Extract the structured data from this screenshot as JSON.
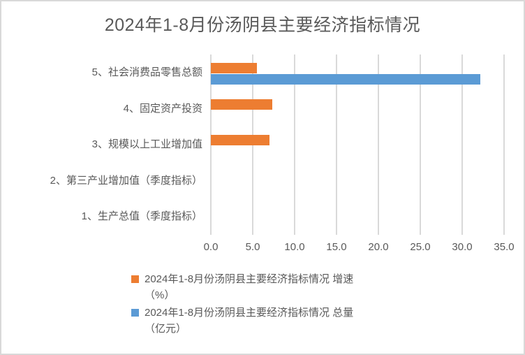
{
  "frame": {
    "background": "#ffffff",
    "border_color": "#d9d9d9",
    "text_color": "#595959",
    "gridline_color": "#d9d9d9"
  },
  "chart_data": {
    "type": "bar",
    "orientation": "horizontal",
    "title": "2024年1-8月份汤阴县主要经济指标情况",
    "categories": [
      "5、社会消费品零售总额",
      "4、固定资产投资",
      "3、规模以上工业增加值",
      "2、第三产业增加值（季度指标）",
      "1、生产总值（季度指标）"
    ],
    "series": [
      {
        "name": "2024年1-8月份汤阴县主要经济指标情况 增速（%）",
        "color": "#ED7D31",
        "values": [
          5.5,
          7.3,
          7.0,
          null,
          null
        ]
      },
      {
        "name": "2024年1-8月份汤阴县主要经济指标情况 总量（亿元）",
        "color": "#5B9BD5",
        "values": [
          32.2,
          null,
          null,
          null,
          null
        ]
      }
    ],
    "x_axis": {
      "min": 0,
      "max": 35,
      "step": 5,
      "tick_labels": [
        "0.0",
        "5.0",
        "10.0",
        "15.0",
        "20.0",
        "25.0",
        "30.0",
        "35.0"
      ]
    },
    "grid": true,
    "legend_position": "bottom"
  },
  "legend": {
    "entries": [
      {
        "lines": [
          "2024年1-8月份汤阴县主要经济指标情况 增速",
          "（%）"
        ]
      },
      {
        "lines": [
          "2024年1-8月份汤阴县主要经济指标情况 总量",
          "（亿元）"
        ]
      }
    ]
  }
}
